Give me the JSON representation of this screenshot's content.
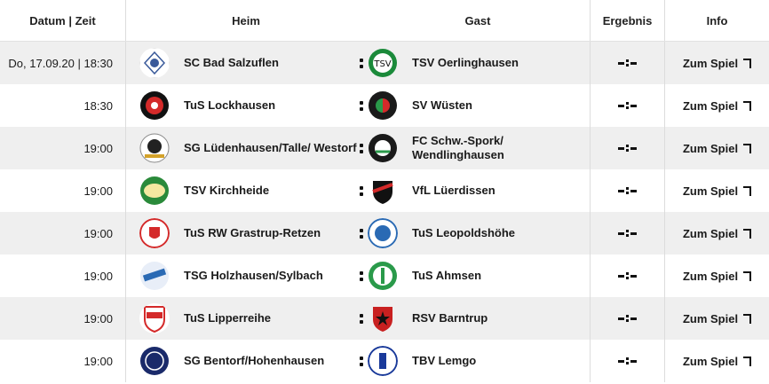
{
  "header": {
    "date": "Datum | Zeit",
    "home": "Heim",
    "away": "Gast",
    "result": "Ergebnis",
    "info": "Info"
  },
  "matches": [
    {
      "date": "Do, 17.09.20 | 18:30",
      "home": "SC Bad Salzuflen",
      "away": "TSV Oerlinghausen",
      "info": "Zum Spiel"
    },
    {
      "date": "18:30",
      "home": "TuS Lockhausen",
      "away": "SV Wüsten",
      "info": "Zum Spiel"
    },
    {
      "date": "19:00",
      "home": "SG Lüdenhausen/Talle/ Westorf",
      "away": "FC Schw.-Spork/ Wendlinghausen",
      "info": "Zum Spiel"
    },
    {
      "date": "19:00",
      "home": "TSV Kirchheide",
      "away": "VfL Lüerdissen",
      "info": "Zum Spiel"
    },
    {
      "date": "19:00",
      "home": "TuS RW Grastrup-Retzen",
      "away": "TuS Leopoldshöhe",
      "info": "Zum Spiel"
    },
    {
      "date": "19:00",
      "home": "TSG Holzhausen/Sylbach",
      "away": "TuS Ahmsen",
      "info": "Zum Spiel"
    },
    {
      "date": "19:00",
      "home": "TuS Lipperreihe",
      "away": "RSV Barntrup",
      "info": "Zum Spiel"
    },
    {
      "date": "19:00",
      "home": "SG Bentorf/Hohenhausen",
      "away": "TBV Lemgo",
      "info": "Zum Spiel"
    }
  ],
  "icons": {
    "separator": "vertical-dots-icon",
    "result": "result-placeholder-icon",
    "external": "external-link-icon"
  },
  "colors": {
    "row_odd": "#efefef",
    "row_even": "#ffffff"
  }
}
